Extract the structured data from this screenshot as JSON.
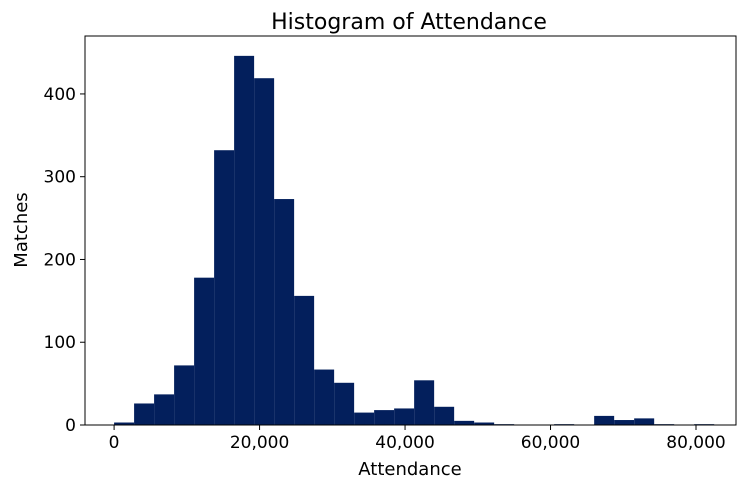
{
  "chart_data": {
    "type": "bar",
    "title": "Histogram of Attendance",
    "xlabel": "Attendance",
    "ylabel": "Matches",
    "xlim": [
      -4000,
      85500
    ],
    "ylim": [
      0,
      470
    ],
    "x_ticks": [
      0,
      20000,
      40000,
      60000,
      80000
    ],
    "x_tick_labels": [
      "0",
      "20,000",
      "40,000",
      "60,000",
      "80,000"
    ],
    "y_ticks": [
      0,
      100,
      200,
      300,
      400
    ],
    "y_tick_labels": [
      "0",
      "100",
      "200",
      "300",
      "400"
    ],
    "bin_start": 0,
    "bin_width": 2750,
    "values": [
      3,
      26,
      37,
      72,
      178,
      332,
      446,
      419,
      273,
      156,
      67,
      51,
      15,
      18,
      20,
      54,
      22,
      5,
      3,
      1,
      0,
      0,
      1,
      0,
      11,
      6,
      8,
      1,
      0,
      1
    ],
    "bar_color": "#031f5c",
    "grid": false
  }
}
